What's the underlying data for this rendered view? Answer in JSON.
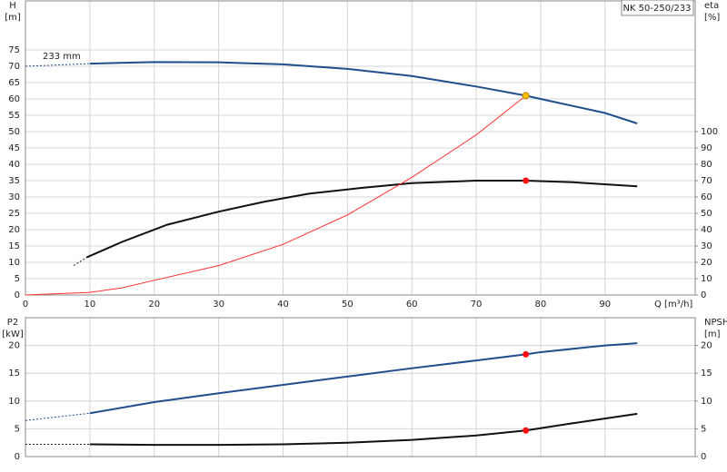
{
  "chart_data": [
    {
      "type": "line",
      "title": "NK 50-250/233",
      "annotation": "233 mm",
      "ylabel": [
        "H",
        "[m]"
      ],
      "y2label": [
        "eta",
        "[%]"
      ],
      "xlabel": "Q [m³/h]",
      "xlim": [
        0,
        104
      ],
      "xticks": [
        0,
        10,
        20,
        30,
        40,
        50,
        60,
        70,
        80,
        90
      ],
      "x_tick_labels": true,
      "ylim": [
        0,
        90
      ],
      "yticks": [
        0,
        5,
        10,
        15,
        20,
        25,
        30,
        35,
        40,
        45,
        50,
        55,
        60,
        65,
        70,
        75
      ],
      "y2lim": [
        0,
        180
      ],
      "y2ticks": [
        0,
        10,
        20,
        30,
        40,
        50,
        60,
        70,
        80,
        90,
        100
      ],
      "grid": true,
      "series": [
        {
          "color": "#1f4e8c",
          "dash": true,
          "x": [
            0,
            10
          ],
          "values": [
            70,
            70.8
          ]
        },
        {
          "color": "#1f4e8c",
          "dash": false,
          "x": [
            10,
            20,
            30,
            40,
            50,
            60,
            70,
            77.7,
            80,
            90,
            95
          ],
          "values": [
            70.8,
            71.3,
            71.2,
            70.6,
            69.2,
            67,
            63.8,
            61,
            60,
            55.7,
            52.5
          ]
        },
        {
          "color": "#222222",
          "dash": true,
          "axis": "y2",
          "x": [
            7.5,
            9.5
          ],
          "values": [
            18,
            23
          ]
        },
        {
          "color": "#111111",
          "dash": false,
          "axis": "y2",
          "x": [
            9.5,
            15,
            22,
            30,
            37,
            44,
            52,
            60,
            70,
            77.7,
            85,
            95
          ],
          "values": [
            23,
            32.5,
            43,
            51,
            57,
            62,
            65.5,
            68.5,
            70,
            70,
            69,
            66.5
          ]
        },
        {
          "color": "#ff3030",
          "dash": false,
          "thin": true,
          "x": [
            0,
            10,
            15,
            20,
            30,
            40,
            50,
            60,
            70,
            77.7
          ],
          "values": [
            0,
            0.8,
            2.2,
            4.5,
            9,
            15.5,
            24.5,
            36,
            49,
            61
          ]
        }
      ],
      "points": [
        {
          "x": 77.7,
          "y": 61,
          "color": "#ffc000"
        },
        {
          "x": 77.7,
          "y": 70,
          "axis": "y2",
          "color": "#ff1010"
        }
      ]
    },
    {
      "type": "line",
      "ylabel": [
        "P2",
        "[kW]"
      ],
      "y2label": [
        "NPSH",
        "[m]"
      ],
      "xlim": [
        0,
        104
      ],
      "xticks": [
        0,
        10,
        20,
        30,
        40,
        50,
        60,
        70,
        80,
        90
      ],
      "x_tick_labels": false,
      "ylim": [
        0,
        25
      ],
      "yticks": [
        0,
        5,
        10,
        15,
        20
      ],
      "y2lim": [
        0,
        25
      ],
      "y2ticks": [
        0,
        5,
        10,
        15,
        20
      ],
      "grid": true,
      "series": [
        {
          "color": "#1f4e8c",
          "dash": true,
          "x": [
            0,
            10
          ],
          "values": [
            6.5,
            7.8
          ]
        },
        {
          "color": "#1f4e8c",
          "dash": false,
          "x": [
            10,
            20,
            30,
            40,
            50,
            60,
            70,
            77.7,
            80,
            90,
            95
          ],
          "values": [
            7.8,
            9.8,
            11.4,
            12.9,
            14.4,
            15.9,
            17.3,
            18.4,
            18.8,
            20,
            20.4
          ]
        },
        {
          "color": "#222222",
          "dash": true,
          "axis": "y2",
          "x": [
            0,
            10
          ],
          "values": [
            2.2,
            2.2
          ]
        },
        {
          "color": "#111111",
          "dash": false,
          "axis": "y2",
          "x": [
            10,
            20,
            30,
            40,
            50,
            60,
            70,
            77.7,
            85,
            95
          ],
          "values": [
            2.2,
            2.1,
            2.1,
            2.2,
            2.5,
            3,
            3.8,
            4.7,
            6,
            7.7
          ]
        }
      ],
      "points": [
        {
          "x": 77.7,
          "y": 18.4,
          "color": "#ff1010"
        },
        {
          "x": 77.7,
          "y": 4.7,
          "axis": "y2",
          "color": "#ff1010"
        }
      ]
    }
  ]
}
